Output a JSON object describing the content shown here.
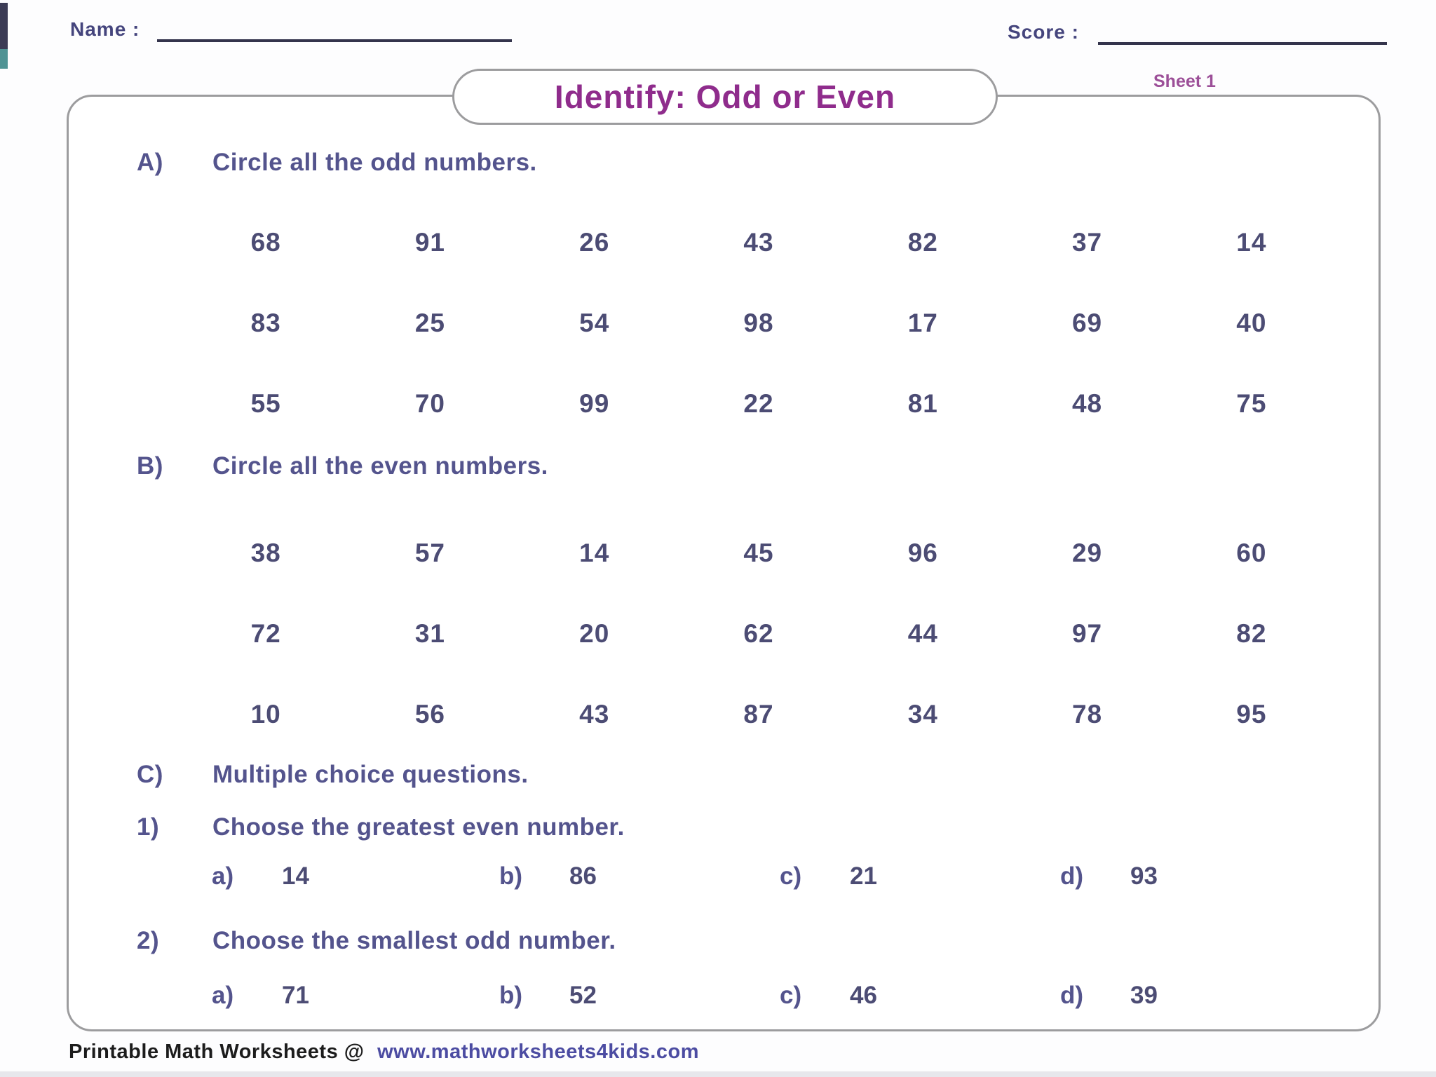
{
  "header": {
    "name_label": "Name :",
    "score_label": "Score :",
    "title": "Identify: Odd or Even",
    "sheet_label": "Sheet 1"
  },
  "sections": {
    "a": {
      "label": "A)",
      "instruction": "Circle all the odd numbers.",
      "rows": [
        [
          "68",
          "91",
          "26",
          "43",
          "82",
          "37",
          "14"
        ],
        [
          "83",
          "25",
          "54",
          "98",
          "17",
          "69",
          "40"
        ],
        [
          "55",
          "70",
          "99",
          "22",
          "81",
          "48",
          "75"
        ]
      ]
    },
    "b": {
      "label": "B)",
      "instruction": "Circle all the even numbers.",
      "rows": [
        [
          "38",
          "57",
          "14",
          "45",
          "96",
          "29",
          "60"
        ],
        [
          "72",
          "31",
          "20",
          "62",
          "44",
          "97",
          "82"
        ],
        [
          "10",
          "56",
          "43",
          "87",
          "34",
          "78",
          "95"
        ]
      ]
    },
    "c": {
      "label": "C)",
      "instruction": "Multiple choice questions.",
      "questions": [
        {
          "label": "1)",
          "text": "Choose the greatest even number.",
          "options": [
            {
              "letter": "a)",
              "value": "14"
            },
            {
              "letter": "b)",
              "value": "86"
            },
            {
              "letter": "c)",
              "value": "21"
            },
            {
              "letter": "d)",
              "value": "93"
            }
          ]
        },
        {
          "label": "2)",
          "text": "Choose the smallest odd number.",
          "options": [
            {
              "letter": "a)",
              "value": "71"
            },
            {
              "letter": "b)",
              "value": "52"
            },
            {
              "letter": "c)",
              "value": "46"
            },
            {
              "letter": "d)",
              "value": "39"
            }
          ]
        }
      ]
    }
  },
  "footer": {
    "prefix": "Printable Math Worksheets @",
    "link": "www.mathworksheets4kids.com"
  },
  "theme": {
    "edge-dark": "#3b3b55",
    "edge-teal": "#4f9394",
    "label": "#45457d",
    "line": "#34344c",
    "title": "#8f2c8c",
    "sheet": "#9c4f98",
    "box-border": "#9c9c9e",
    "head": "#54548d",
    "num": "#4c4c74",
    "footer-dark": "#1c1c1c",
    "footer-link": "#4c4ca2"
  }
}
